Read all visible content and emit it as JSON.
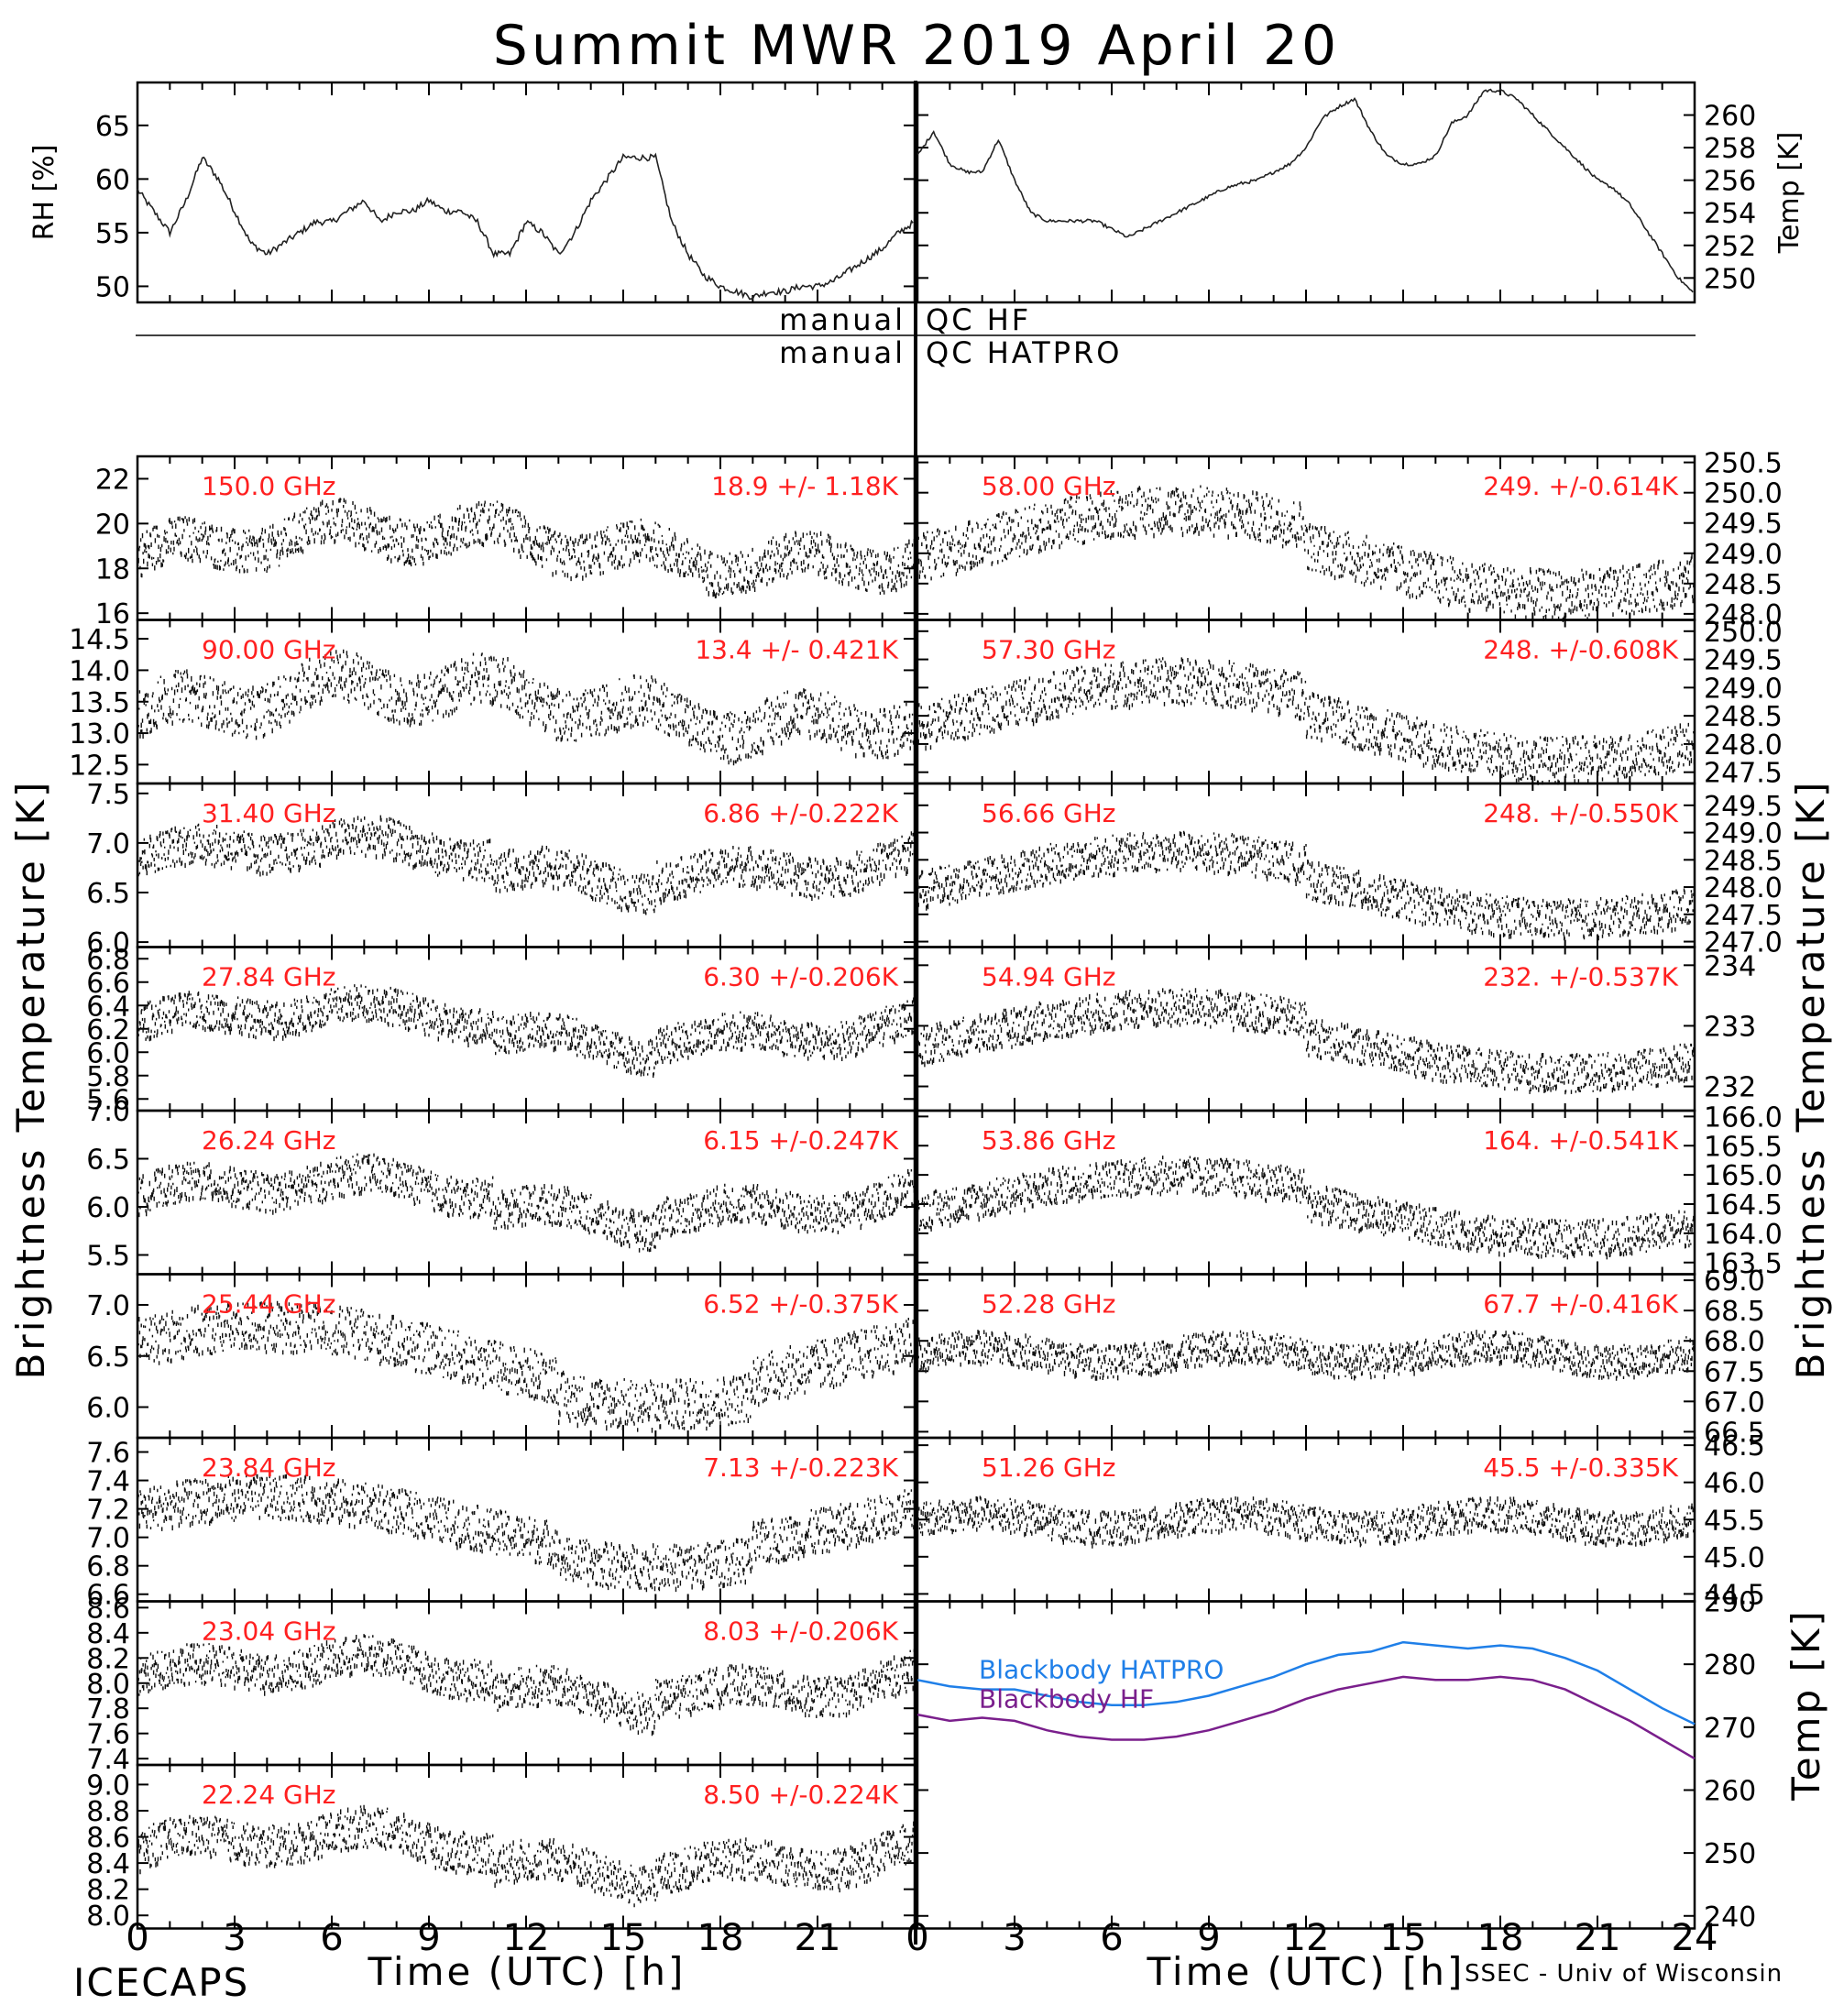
{
  "figure": {
    "title": "Summit MWR 2019 April 20",
    "left_ylabel": "Brightness Temperature [K]",
    "right_ylabel": "Brightness Temperature [K]",
    "xlabel": "Time (UTC) [h]",
    "footer_left": "ICECAPS",
    "footer_right": "SSEC - Univ of Wisconsin",
    "x_ticks": [
      "0",
      "3",
      "6",
      "9",
      "12",
      "15",
      "18",
      "21"
    ],
    "x_ticks_right": [
      "0",
      "3",
      "6",
      "9",
      "12",
      "15",
      "18",
      "21",
      "24"
    ],
    "qc_labels": {
      "left_top": "manual",
      "right_top": "QC HF",
      "left_bottom": "manual",
      "right_bottom": "QC HATPRO"
    }
  },
  "chart_data": [
    {
      "type": "scatter",
      "panel": "met-rh",
      "ylabel": "RH [%]",
      "ylim": [
        48.5,
        69
      ],
      "yticks": [
        "50",
        "55",
        "60",
        "65"
      ],
      "x": [
        0,
        0.5,
        1,
        1.5,
        2,
        2.5,
        3,
        3.5,
        4,
        4.5,
        5,
        5.5,
        6,
        6.5,
        7,
        7.5,
        8,
        8.5,
        9,
        9.5,
        10,
        10.5,
        11,
        11.5,
        12,
        12.5,
        13,
        13.5,
        14,
        14.5,
        15,
        15.5,
        16,
        16.5,
        17,
        17.5,
        18,
        18.5,
        19,
        19.5,
        20,
        20.5,
        21,
        21.5,
        22,
        22.5,
        23,
        23.5,
        24
      ],
      "y": [
        59,
        57,
        55,
        58,
        62,
        60,
        57,
        54,
        53,
        54,
        55,
        56,
        56,
        57,
        58,
        56,
        57,
        57,
        58,
        57,
        57,
        56,
        53,
        53,
        56,
        55,
        53,
        55,
        58,
        60,
        62,
        62,
        62,
        56,
        53,
        51,
        50,
        49.5,
        49,
        49.5,
        49.5,
        50,
        50,
        50.5,
        51.5,
        52.5,
        53.5,
        55,
        56
      ]
    },
    {
      "type": "scatter",
      "panel": "met-temp",
      "ylabel": "Temp [K]",
      "ylim": [
        248.5,
        262
      ],
      "yticks": [
        "250",
        "252",
        "254",
        "256",
        "258",
        "260"
      ],
      "x": [
        0,
        0.5,
        1,
        1.5,
        2,
        2.5,
        3,
        3.5,
        4,
        4.5,
        5,
        5.5,
        6,
        6.5,
        7,
        7.5,
        8,
        8.5,
        9,
        9.5,
        10,
        10.5,
        11,
        11.5,
        12,
        12.5,
        13,
        13.5,
        14,
        14.5,
        15,
        15.5,
        16,
        16.5,
        17,
        17.5,
        18,
        18.5,
        19,
        19.5,
        20,
        20.5,
        21,
        21.5,
        22,
        22.5,
        23,
        23.5,
        24
      ],
      "y": [
        257.5,
        259,
        257,
        256.5,
        256.5,
        258.5,
        256,
        254,
        253.5,
        253.5,
        253.5,
        253.5,
        253,
        252.5,
        253,
        253.5,
        254,
        254.5,
        255,
        255.5,
        255.8,
        256,
        256.5,
        257,
        258,
        259.8,
        260.5,
        261,
        259,
        257.5,
        257,
        257,
        257.5,
        259.5,
        260,
        261.5,
        261.5,
        261,
        260,
        259,
        258,
        257,
        256,
        255.5,
        254.5,
        253,
        251.5,
        250,
        249
      ]
    },
    {
      "type": "scatter",
      "panel": "left-1",
      "label": "150.0 GHz",
      "stat": "18.9 +/-  1.18K",
      "center": 19.0,
      "amp": 2.2,
      "ylim": [
        15.7,
        23
      ],
      "yticks": [
        "16",
        "18",
        "20",
        "22"
      ],
      "shape": "a"
    },
    {
      "type": "scatter",
      "panel": "left-2",
      "label": "90.00 GHz",
      "stat": "13.4 +/- 0.421K",
      "center": 13.45,
      "amp": 0.9,
      "ylim": [
        12.2,
        14.8
      ],
      "yticks": [
        "12.5",
        "13.0",
        "13.5",
        "14.0",
        "14.5"
      ],
      "shape": "a"
    },
    {
      "type": "scatter",
      "panel": "left-3",
      "label": "31.40 GHz",
      "stat": "6.86 +/-0.222K",
      "center": 6.85,
      "amp": 0.45,
      "ylim": [
        5.95,
        7.6
      ],
      "yticks": [
        "6.0",
        "6.5",
        "7.0",
        "7.5"
      ],
      "shape": "b"
    },
    {
      "type": "scatter",
      "panel": "left-4",
      "label": "27.84 GHz",
      "stat": "6.30 +/-0.206K",
      "center": 6.25,
      "amp": 0.35,
      "ylim": [
        5.5,
        6.9
      ],
      "yticks": [
        "5.6",
        "5.8",
        "6.0",
        "6.2",
        "6.4",
        "6.6",
        "6.8"
      ],
      "shape": "b"
    },
    {
      "type": "scatter",
      "panel": "left-5",
      "label": "26.24 GHz",
      "stat": "6.15 +/-0.247K",
      "center": 6.12,
      "amp": 0.45,
      "ylim": [
        5.3,
        7.0
      ],
      "yticks": [
        "5.5",
        "6.0",
        "6.5",
        "7.0"
      ],
      "shape": "b"
    },
    {
      "type": "scatter",
      "panel": "left-6",
      "label": "25.44 GHz",
      "stat": "6.52 +/-0.375K",
      "center": 6.5,
      "amp": 0.55,
      "ylim": [
        5.7,
        7.3
      ],
      "yticks": [
        "6.0",
        "6.5",
        "7.0"
      ],
      "shape": "c"
    },
    {
      "type": "scatter",
      "panel": "left-7",
      "label": "23.84 GHz",
      "stat": "7.13 +/-0.223K",
      "center": 7.1,
      "amp": 0.35,
      "ylim": [
        6.55,
        7.7
      ],
      "yticks": [
        "6.6",
        "6.8",
        "7.0",
        "7.2",
        "7.4",
        "7.6"
      ],
      "shape": "c"
    },
    {
      "type": "scatter",
      "panel": "left-8",
      "label": "23.04 GHz",
      "stat": "8.03 +/-0.206K",
      "center": 8.05,
      "amp": 0.35,
      "ylim": [
        7.35,
        8.65
      ],
      "yticks": [
        "7.4",
        "7.6",
        "7.8",
        "8.0",
        "8.2",
        "8.4",
        "8.6"
      ],
      "shape": "b"
    },
    {
      "type": "scatter",
      "panel": "left-9",
      "label": "22.24 GHz",
      "stat": "8.50 +/-0.224K",
      "center": 8.5,
      "amp": 0.35,
      "ylim": [
        7.9,
        9.15
      ],
      "yticks": [
        "8.0",
        "8.2",
        "8.4",
        "8.6",
        "8.8",
        "9.0"
      ],
      "shape": "b"
    },
    {
      "type": "scatter",
      "panel": "right-1",
      "label": "58.00 GHz",
      "stat": "249. +/-0.614K",
      "center": 249.2,
      "amp": 0.9,
      "ylim": [
        247.9,
        250.6
      ],
      "yticks": [
        "248.0",
        "248.5",
        "249.0",
        "249.5",
        "250.0",
        "250.5"
      ],
      "shape": "d"
    },
    {
      "type": "scatter",
      "panel": "right-2",
      "label": "57.30 GHz",
      "stat": "248. +/-0.608K",
      "center": 248.6,
      "amp": 0.9,
      "ylim": [
        247.3,
        250.2
      ],
      "yticks": [
        "247.5",
        "248.0",
        "248.5",
        "249.0",
        "249.5",
        "250.0"
      ],
      "shape": "d"
    },
    {
      "type": "scatter",
      "panel": "right-3",
      "label": "56.66 GHz",
      "stat": "248. +/-0.550K",
      "center": 248.2,
      "amp": 0.8,
      "ylim": [
        246.9,
        249.9
      ],
      "yticks": [
        "247.0",
        "247.5",
        "248.0",
        "248.5",
        "249.0",
        "249.5"
      ],
      "shape": "d"
    },
    {
      "type": "scatter",
      "panel": "right-4",
      "label": "54.94 GHz",
      "stat": "232. +/-0.537K",
      "center": 232.9,
      "amp": 0.7,
      "ylim": [
        231.6,
        234.3
      ],
      "yticks": [
        "232",
        "233",
        "234"
      ],
      "shape": "d"
    },
    {
      "type": "scatter",
      "panel": "right-5",
      "label": "53.86 GHz",
      "stat": "164. +/-0.541K",
      "center": 164.6,
      "amp": 0.7,
      "ylim": [
        163.3,
        166.1
      ],
      "yticks": [
        "163.5",
        "164.0",
        "164.5",
        "165.0",
        "165.5",
        "166.0"
      ],
      "shape": "d"
    },
    {
      "type": "scatter",
      "panel": "right-6",
      "label": "52.28 GHz",
      "stat": "67.7 +/-0.416K",
      "center": 67.8,
      "amp": 0.6,
      "ylim": [
        66.4,
        69.1
      ],
      "yticks": [
        "66.5",
        "67.0",
        "67.5",
        "68.0",
        "68.5",
        "69.0"
      ],
      "shape": "e"
    },
    {
      "type": "scatter",
      "panel": "right-7",
      "label": "51.26 GHz",
      "stat": "45.5 +/-0.335K",
      "center": 45.5,
      "amp": 0.5,
      "ylim": [
        44.4,
        46.6
      ],
      "yticks": [
        "44.5",
        "45.0",
        "45.5",
        "46.0",
        "46.5"
      ],
      "shape": "e"
    },
    {
      "type": "line",
      "panel": "blackbody",
      "ylabel": "Temp [K]",
      "ylim": [
        238,
        290
      ],
      "yticks": [
        "240",
        "250",
        "260",
        "270",
        "280",
        "290"
      ],
      "series": [
        {
          "name": "Blackbody HATPRO",
          "color": "#1f7fe8",
          "x": [
            0,
            1,
            2,
            3,
            4,
            5,
            6,
            7,
            8,
            9,
            10,
            11,
            12,
            13,
            14,
            15,
            16,
            17,
            18,
            19,
            20,
            21,
            22,
            23,
            24
          ],
          "y": [
            277.5,
            276.5,
            276,
            276,
            275,
            274,
            273.5,
            273.5,
            274,
            275,
            276.5,
            278,
            280,
            281.5,
            282,
            283.5,
            283,
            282.5,
            283,
            282.5,
            281,
            279,
            276,
            273,
            270.5
          ]
        },
        {
          "name": "Blackbody HF",
          "color": "#7a1f8c",
          "x": [
            0,
            1,
            2,
            3,
            4,
            5,
            6,
            7,
            8,
            9,
            10,
            11,
            12,
            13,
            14,
            15,
            16,
            17,
            18,
            19,
            20,
            21,
            22,
            23,
            24
          ],
          "y": [
            272,
            271,
            271.5,
            271,
            269.5,
            268.5,
            268,
            268,
            268.5,
            269.5,
            271,
            272.5,
            274.5,
            276,
            277,
            278,
            277.5,
            277.5,
            278,
            277.5,
            276,
            273.5,
            271,
            268,
            265
          ]
        }
      ]
    }
  ]
}
